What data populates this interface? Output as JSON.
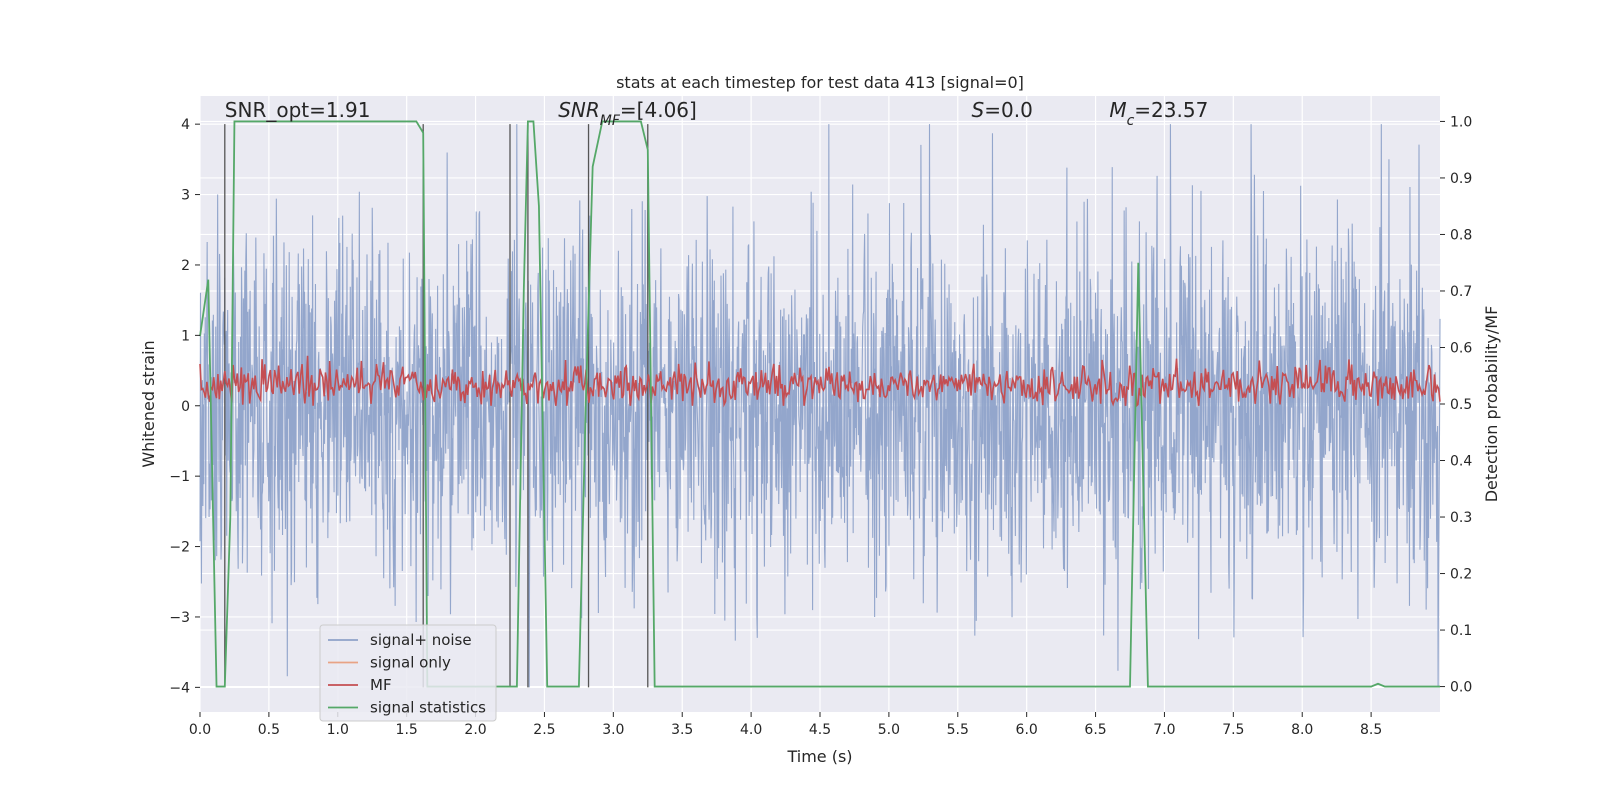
{
  "chart_data": {
    "type": "line",
    "title": "stats at each timestep for test data 413 [signal=0]",
    "xlabel": "Time (s)",
    "ylabel": "Whitened strain",
    "y2label": "Detection probability/MF",
    "xlim": [
      0.0,
      9.0
    ],
    "ylim": [
      -4.35,
      4.4
    ],
    "y2lim": [
      -0.045,
      1.045
    ],
    "x_ticks": [
      0.0,
      0.5,
      1.0,
      1.5,
      2.0,
      2.5,
      3.0,
      3.5,
      4.0,
      4.5,
      5.0,
      5.5,
      6.0,
      6.5,
      7.0,
      7.5,
      8.0,
      8.5
    ],
    "x_tick_labels": [
      "0.0",
      "0.5",
      "1.0",
      "1.5",
      "2.0",
      "2.5",
      "3.0",
      "3.5",
      "4.0",
      "4.5",
      "5.0",
      "5.5",
      "6.0",
      "6.5",
      "7.0",
      "7.5",
      "8.0",
      "8.5"
    ],
    "y_ticks": [
      -4,
      -3,
      -2,
      -1,
      0,
      1,
      2,
      3,
      4
    ],
    "y_tick_labels": [
      "−4",
      "−3",
      "−2",
      "−1",
      "0",
      "1",
      "2",
      "3",
      "4"
    ],
    "y2_ticks": [
      0.0,
      0.1,
      0.2,
      0.3,
      0.4,
      0.5,
      0.6,
      0.7,
      0.8,
      0.9,
      1.0
    ],
    "y2_tick_labels": [
      "0.0",
      "0.1",
      "0.2",
      "0.3",
      "0.4",
      "0.5",
      "0.6",
      "0.7",
      "0.8",
      "0.9",
      "1.0"
    ],
    "annotations": [
      {
        "text": "SNR_opt=1.91",
        "x": 0.18,
        "y": 4.1
      },
      {
        "text": "SNR_MF=[4.06]",
        "x": 2.6,
        "y": 4.1
      },
      {
        "text": "S=0.0",
        "x": 5.6,
        "y": 4.1
      },
      {
        "text": "M_c=23.57",
        "x": 6.6,
        "y": 4.1
      }
    ],
    "series": [
      {
        "name": "signal+ noise",
        "color": "#8ea2c9",
        "axis": "left",
        "style": "noise",
        "description": "whitened strain noise, roughly within ±3.5 with spikes to ±4"
      },
      {
        "name": "signal only",
        "color": "#e8a385",
        "axis": "left",
        "values": []
      },
      {
        "name": "MF",
        "color": "#c44e52",
        "axis": "left",
        "style": "noise",
        "description": "matched filter output fluctuating around 0.3, between 0 and 0.75"
      },
      {
        "name": "signal statistics",
        "color": "#55a868",
        "axis": "right",
        "x": [
          0.0,
          0.06,
          0.12,
          0.18,
          0.22,
          0.25,
          1.57,
          1.62,
          1.65,
          2.3,
          2.35,
          2.38,
          2.42,
          2.46,
          2.52,
          2.75,
          2.8,
          2.85,
          2.92,
          3.2,
          3.25,
          3.3,
          6.75,
          6.81,
          6.88,
          8.5,
          8.55,
          8.6,
          9.0
        ],
        "values": [
          0.62,
          0.72,
          0.0,
          0.0,
          0.3,
          1.0,
          1.0,
          0.98,
          0.0,
          0.0,
          0.7,
          1.0,
          1.0,
          0.85,
          0.0,
          0.0,
          0.5,
          0.92,
          1.0,
          1.0,
          0.95,
          0.0,
          0.0,
          0.75,
          0.0,
          0.0,
          0.005,
          0.0,
          0.0
        ]
      },
      {
        "name": "vertical markers",
        "color": "#555555",
        "axis": "left",
        "legend": false,
        "x": [
          0.18,
          1.62,
          2.25,
          2.38,
          2.82,
          3.25
        ]
      }
    ],
    "legend_entries": [
      "signal+ noise",
      "signal only",
      "MF",
      "signal statistics"
    ],
    "legend_loc": "lower-left",
    "grid": true
  }
}
